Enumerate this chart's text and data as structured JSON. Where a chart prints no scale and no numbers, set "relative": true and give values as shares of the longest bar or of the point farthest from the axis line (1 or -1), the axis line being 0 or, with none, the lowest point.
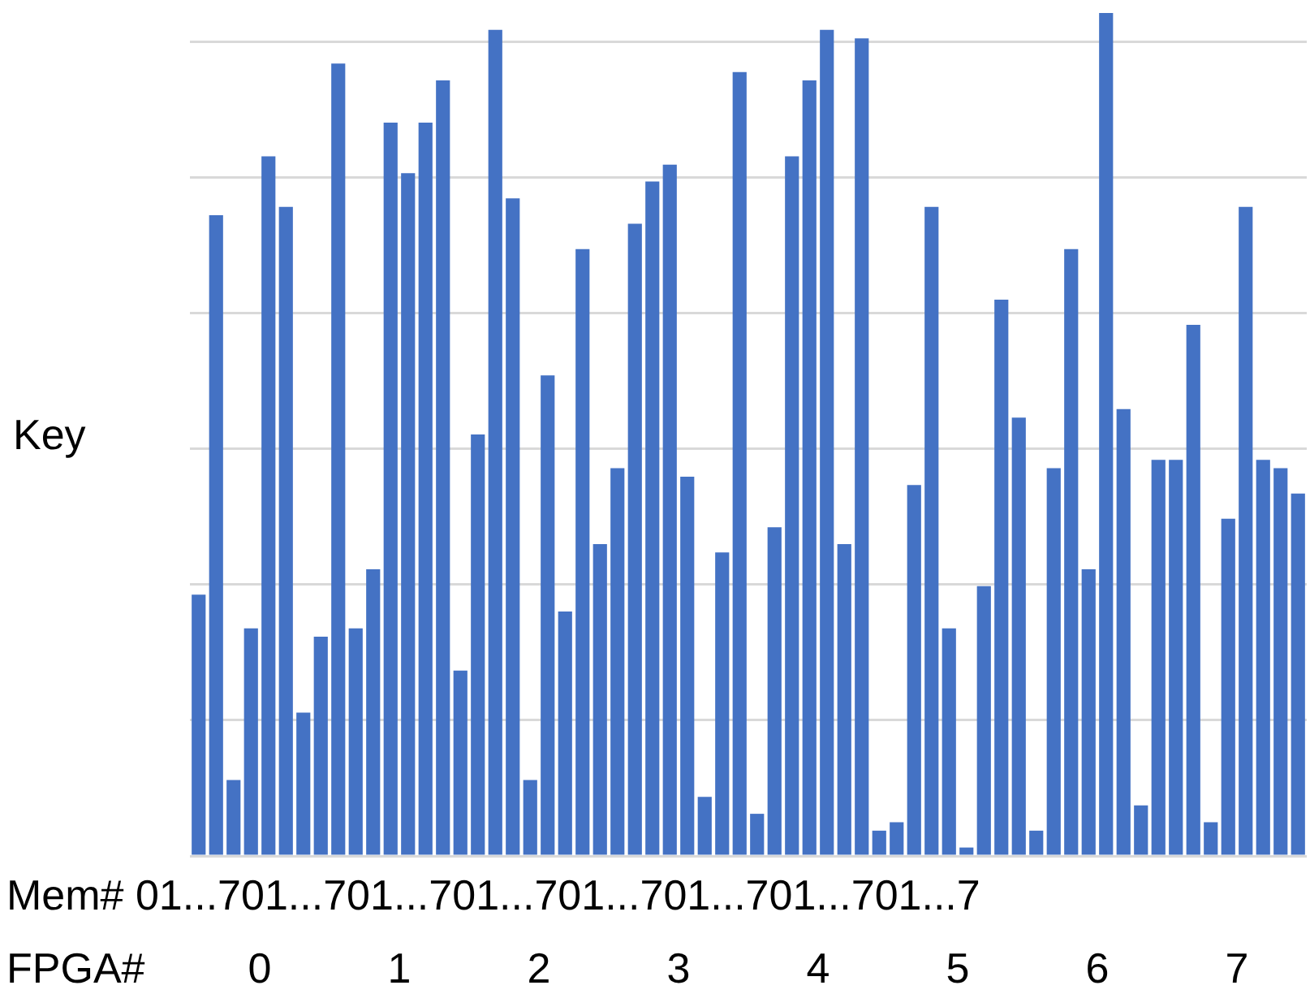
{
  "chart_data": {
    "type": "bar",
    "relative": true,
    "grid": "y",
    "legend": false,
    "ylabel": "Key",
    "color": "#4472c4",
    "categories": [
      null,
      null,
      null,
      null,
      null,
      null,
      null,
      null,
      null,
      null,
      null,
      null,
      null,
      null,
      null,
      null,
      null,
      null,
      null,
      null,
      null,
      null,
      null,
      null,
      null,
      null,
      null,
      null,
      null,
      null,
      null,
      null,
      null,
      null,
      null,
      null,
      null,
      null,
      null,
      null,
      null,
      null,
      null,
      null,
      null,
      null,
      null,
      null,
      null,
      null,
      null,
      null,
      null,
      null,
      null,
      null,
      null,
      null,
      null,
      null,
      null,
      null,
      null,
      null
    ],
    "values": [
      0.31,
      0.76,
      0.09,
      0.27,
      0.83,
      0.77,
      0.17,
      0.26,
      0.94,
      0.27,
      0.34,
      0.87,
      0.81,
      0.87,
      0.92,
      0.22,
      0.5,
      0.98,
      0.78,
      0.09,
      0.57,
      0.29,
      0.72,
      0.37,
      0.46,
      0.75,
      0.8,
      0.82,
      0.45,
      0.07,
      0.36,
      0.93,
      0.05,
      0.39,
      0.83,
      0.92,
      0.98,
      0.37,
      0.97,
      0.03,
      0.04,
      0.44,
      0.77,
      0.27,
      0.01,
      0.32,
      0.66,
      0.52,
      0.03,
      0.46,
      0.72,
      0.34,
      1,
      0.53,
      0.06,
      0.47,
      0.47,
      0.63,
      0.04,
      0.4,
      0.77,
      0.47,
      0.46,
      0.43
    ],
    "annotations": [
      "Mem# 01...701...701...701...701...701...701...701...7",
      "FPGA#",
      "0",
      "1",
      "2",
      "3",
      "4",
      "5",
      "6",
      "7"
    ]
  }
}
